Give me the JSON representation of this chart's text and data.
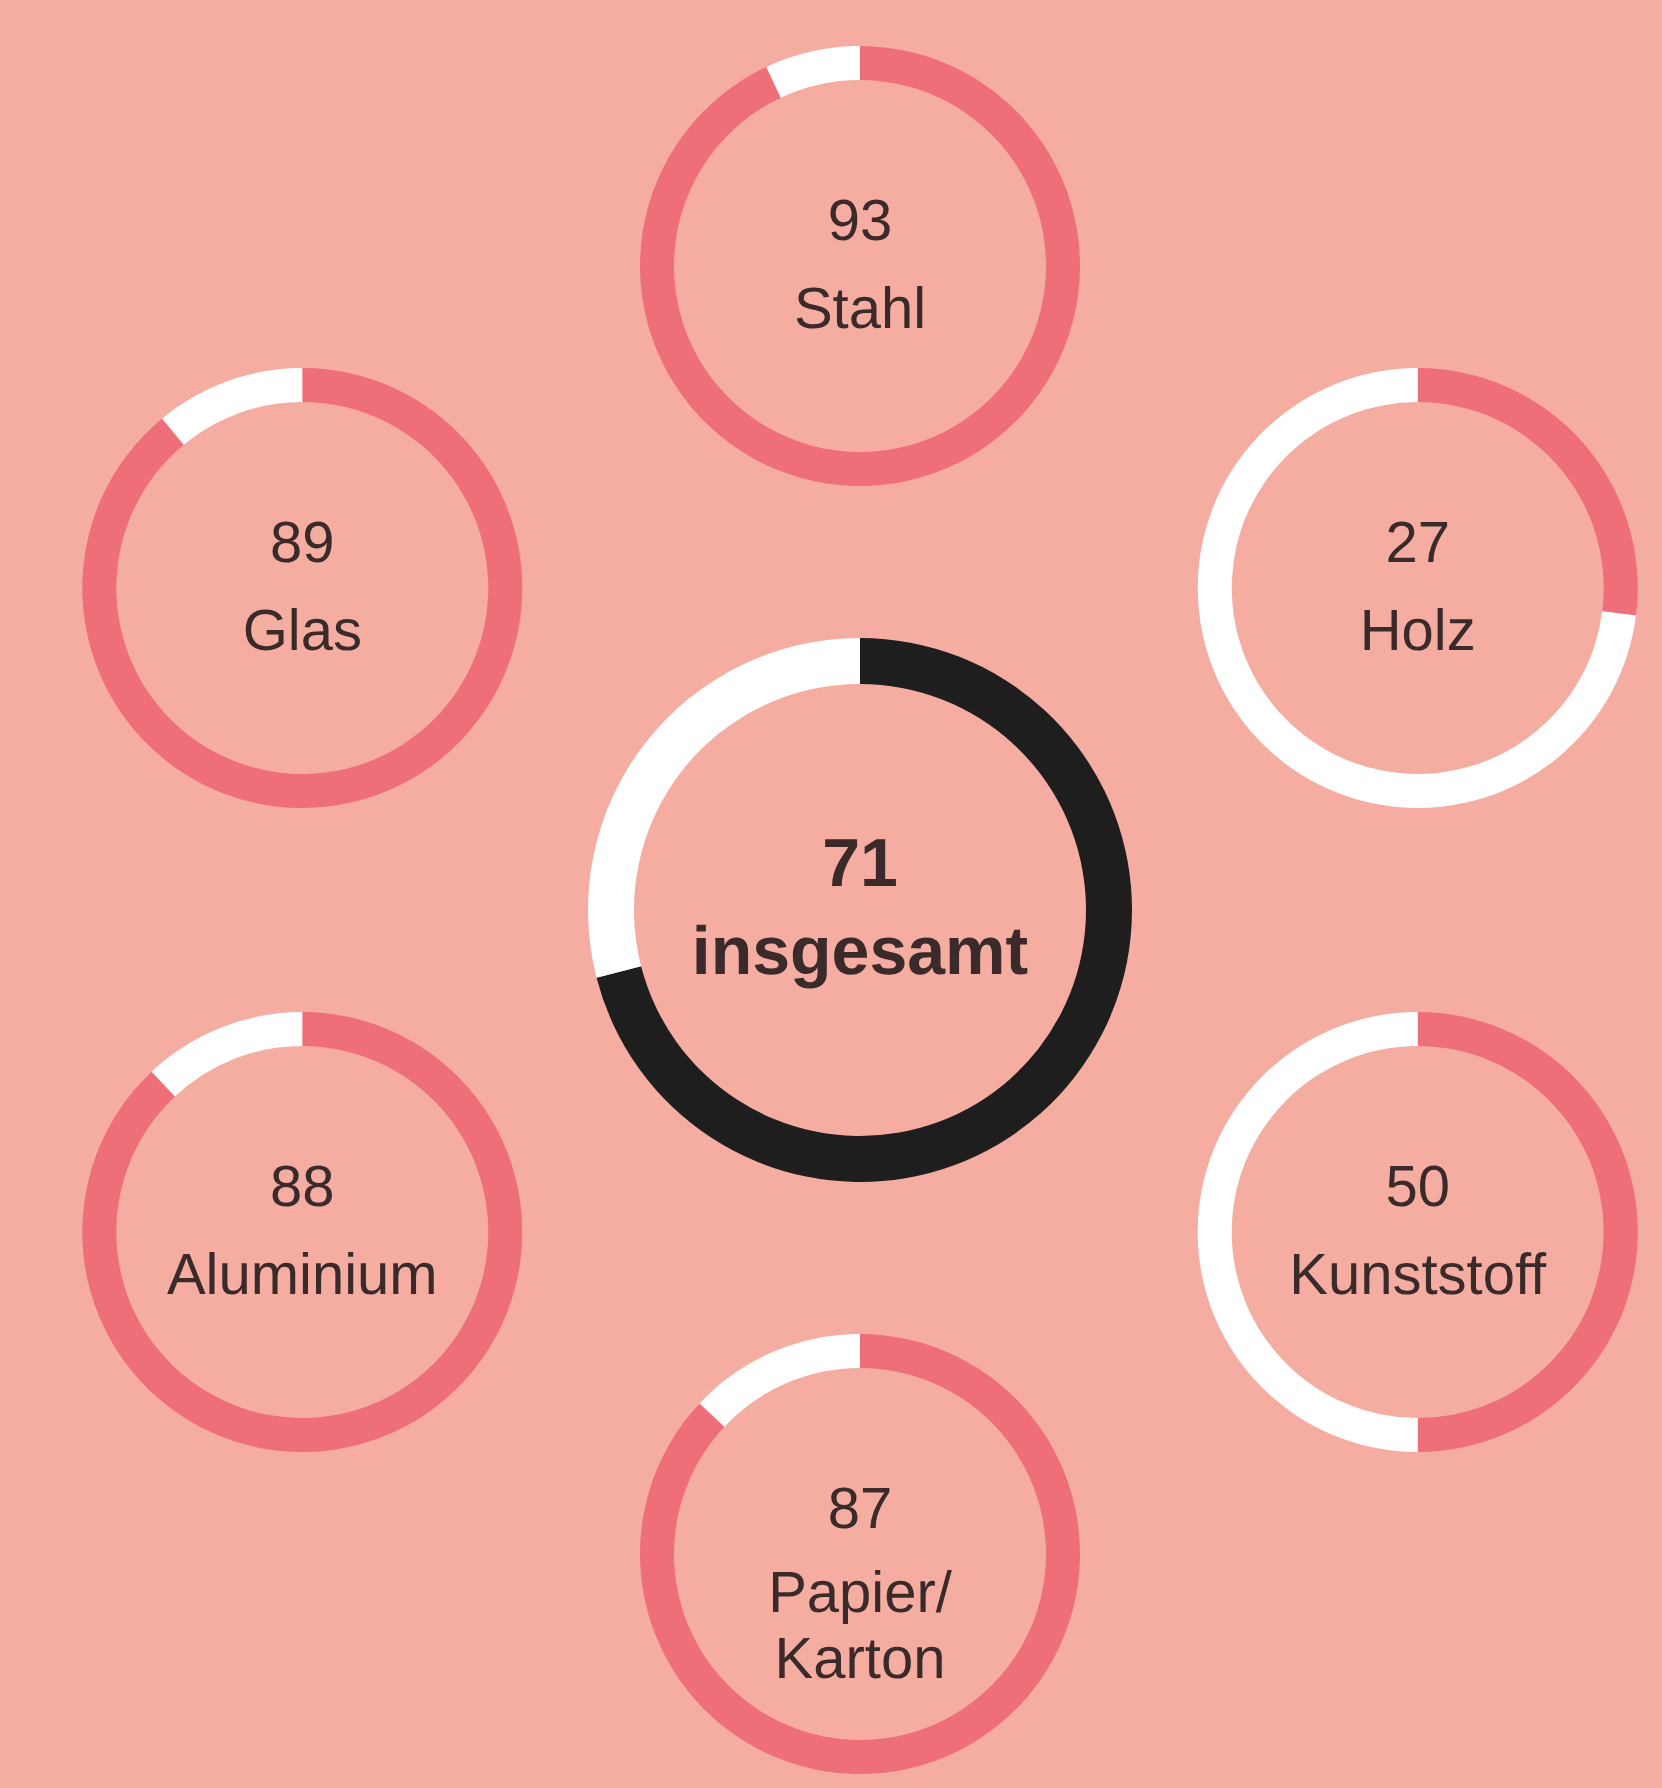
{
  "chart_data": [
    {
      "type": "donut",
      "categories": [
        "Stahl",
        null
      ],
      "values": [
        93,
        7
      ],
      "colors": [
        "#ee6e7a",
        "#ffffff"
      ],
      "value_labels": [
        "93",
        null
      ]
    },
    {
      "type": "donut",
      "categories": [
        "Glas",
        null
      ],
      "values": [
        89,
        11
      ],
      "colors": [
        "#ee6e7a",
        "#ffffff"
      ],
      "value_labels": [
        "89",
        null
      ]
    },
    {
      "type": "donut",
      "categories": [
        "Holz",
        null
      ],
      "values": [
        27,
        73
      ],
      "colors": [
        "#ee6e7a",
        "#ffffff"
      ],
      "value_labels": [
        "27",
        null
      ]
    },
    {
      "type": "donut",
      "categories": [
        "insgesamt",
        null
      ],
      "values": [
        71,
        29
      ],
      "colors": [
        "#1e1e1e",
        "#ffffff"
      ],
      "value_labels": [
        "71",
        null
      ]
    },
    {
      "type": "donut",
      "categories": [
        "Aluminium",
        null
      ],
      "values": [
        88,
        12
      ],
      "colors": [
        "#ee6e7a",
        "#ffffff"
      ],
      "value_labels": [
        "88",
        null
      ]
    },
    {
      "type": "donut",
      "categories": [
        "Kunststoff",
        null
      ],
      "values": [
        50,
        50
      ],
      "colors": [
        "#ee6e7a",
        "#ffffff"
      ],
      "value_labels": [
        "50",
        null
      ]
    },
    {
      "type": "donut",
      "categories": [
        "Papier/Karton",
        null
      ],
      "values": [
        87,
        13
      ],
      "colors": [
        "#ee6e7a",
        "#ffffff"
      ],
      "value_labels": [
        "87",
        null
      ]
    }
  ]
}
